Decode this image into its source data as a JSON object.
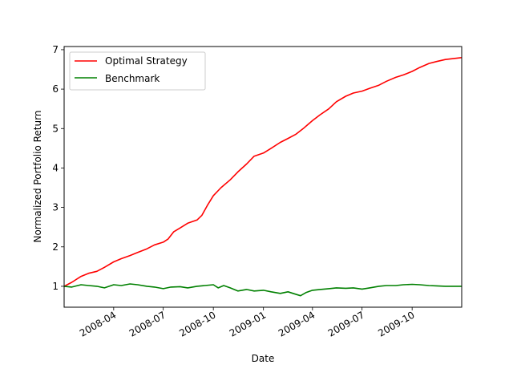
{
  "chart_data": {
    "type": "line",
    "xlabel": "Date",
    "ylabel": "Normalized Portfolio Return",
    "x_range": [
      "2008-01-01",
      "2009-12-31"
    ],
    "ylim": [
      0.47,
      7.08
    ],
    "yticks": [
      1,
      2,
      3,
      4,
      5,
      6,
      7
    ],
    "xticks": [
      {
        "date": "2008-04-01",
        "label": "2008-04"
      },
      {
        "date": "2008-07-01",
        "label": "2008-07"
      },
      {
        "date": "2008-10-01",
        "label": "2008-10"
      },
      {
        "date": "2009-01-01",
        "label": "2009-01"
      },
      {
        "date": "2009-04-01",
        "label": "2009-04"
      },
      {
        "date": "2009-07-01",
        "label": "2009-07"
      },
      {
        "date": "2009-10-01",
        "label": "2009-10"
      }
    ],
    "grid": false,
    "legend_position": "upper-left",
    "series": [
      {
        "name": "Optimal Strategy",
        "color": "#ff0000",
        "points": [
          [
            "2008-01-01",
            1.0
          ],
          [
            "2008-01-15",
            1.1
          ],
          [
            "2008-02-01",
            1.25
          ],
          [
            "2008-02-15",
            1.33
          ],
          [
            "2008-03-01",
            1.38
          ],
          [
            "2008-03-15",
            1.48
          ],
          [
            "2008-04-01",
            1.62
          ],
          [
            "2008-04-15",
            1.7
          ],
          [
            "2008-05-01",
            1.78
          ],
          [
            "2008-05-15",
            1.86
          ],
          [
            "2008-06-01",
            1.95
          ],
          [
            "2008-06-15",
            2.05
          ],
          [
            "2008-07-01",
            2.12
          ],
          [
            "2008-07-10",
            2.2
          ],
          [
            "2008-07-20",
            2.38
          ],
          [
            "2008-08-01",
            2.48
          ],
          [
            "2008-08-15",
            2.6
          ],
          [
            "2008-09-01",
            2.68
          ],
          [
            "2008-09-10",
            2.8
          ],
          [
            "2008-09-20",
            3.05
          ],
          [
            "2008-10-01",
            3.3
          ],
          [
            "2008-10-15",
            3.5
          ],
          [
            "2008-11-01",
            3.7
          ],
          [
            "2008-11-15",
            3.9
          ],
          [
            "2008-12-01",
            4.1
          ],
          [
            "2008-12-15",
            4.3
          ],
          [
            "2009-01-01",
            4.38
          ],
          [
            "2009-01-15",
            4.5
          ],
          [
            "2009-02-01",
            4.65
          ],
          [
            "2009-02-15",
            4.75
          ],
          [
            "2009-03-01",
            4.85
          ],
          [
            "2009-03-15",
            5.0
          ],
          [
            "2009-04-01",
            5.2
          ],
          [
            "2009-04-15",
            5.35
          ],
          [
            "2009-05-01",
            5.5
          ],
          [
            "2009-05-15",
            5.68
          ],
          [
            "2009-06-01",
            5.82
          ],
          [
            "2009-06-15",
            5.9
          ],
          [
            "2009-07-01",
            5.95
          ],
          [
            "2009-07-15",
            6.02
          ],
          [
            "2009-08-01",
            6.1
          ],
          [
            "2009-08-15",
            6.2
          ],
          [
            "2009-09-01",
            6.3
          ],
          [
            "2009-09-15",
            6.36
          ],
          [
            "2009-10-01",
            6.45
          ],
          [
            "2009-10-15",
            6.55
          ],
          [
            "2009-11-01",
            6.65
          ],
          [
            "2009-11-15",
            6.7
          ],
          [
            "2009-12-01",
            6.75
          ],
          [
            "2009-12-31",
            6.8
          ]
        ]
      },
      {
        "name": "Benchmark",
        "color": "#008000",
        "points": [
          [
            "2008-01-01",
            1.0
          ],
          [
            "2008-01-15",
            0.98
          ],
          [
            "2008-02-01",
            1.04
          ],
          [
            "2008-02-15",
            1.02
          ],
          [
            "2008-03-01",
            1.0
          ],
          [
            "2008-03-15",
            0.96
          ],
          [
            "2008-04-01",
            1.04
          ],
          [
            "2008-04-15",
            1.02
          ],
          [
            "2008-05-01",
            1.06
          ],
          [
            "2008-05-15",
            1.04
          ],
          [
            "2008-06-01",
            1.0
          ],
          [
            "2008-06-15",
            0.98
          ],
          [
            "2008-07-01",
            0.94
          ],
          [
            "2008-07-15",
            0.98
          ],
          [
            "2008-08-01",
            0.99
          ],
          [
            "2008-08-15",
            0.96
          ],
          [
            "2008-09-01",
            1.0
          ],
          [
            "2008-09-15",
            1.02
          ],
          [
            "2008-10-01",
            1.04
          ],
          [
            "2008-10-10",
            0.96
          ],
          [
            "2008-10-20",
            1.02
          ],
          [
            "2008-11-01",
            0.96
          ],
          [
            "2008-11-15",
            0.88
          ],
          [
            "2008-12-01",
            0.92
          ],
          [
            "2008-12-15",
            0.88
          ],
          [
            "2009-01-01",
            0.9
          ],
          [
            "2009-01-15",
            0.86
          ],
          [
            "2009-02-01",
            0.82
          ],
          [
            "2009-02-15",
            0.86
          ],
          [
            "2009-03-01",
            0.8
          ],
          [
            "2009-03-10",
            0.76
          ],
          [
            "2009-03-20",
            0.84
          ],
          [
            "2009-04-01",
            0.9
          ],
          [
            "2009-04-15",
            0.92
          ],
          [
            "2009-05-01",
            0.94
          ],
          [
            "2009-05-15",
            0.96
          ],
          [
            "2009-06-01",
            0.95
          ],
          [
            "2009-06-15",
            0.96
          ],
          [
            "2009-07-01",
            0.93
          ],
          [
            "2009-07-15",
            0.96
          ],
          [
            "2009-08-01",
            1.0
          ],
          [
            "2009-08-15",
            1.02
          ],
          [
            "2009-09-01",
            1.02
          ],
          [
            "2009-09-15",
            1.04
          ],
          [
            "2009-10-01",
            1.05
          ],
          [
            "2009-10-15",
            1.04
          ],
          [
            "2009-11-01",
            1.02
          ],
          [
            "2009-11-15",
            1.01
          ],
          [
            "2009-12-01",
            1.0
          ],
          [
            "2009-12-31",
            1.0
          ]
        ]
      }
    ]
  }
}
